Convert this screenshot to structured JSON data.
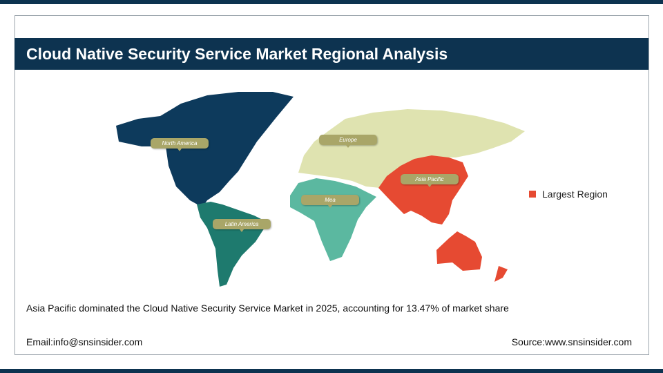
{
  "title": "Cloud Native Security Service Market Regional Analysis",
  "regions": [
    {
      "name": "North America",
      "color": "#0d3a5c"
    },
    {
      "name": "Europe",
      "color": "#dfe3b0"
    },
    {
      "name": "Asia Pacific",
      "color": "#e64a32"
    },
    {
      "name": "Mea",
      "color": "#5bb8a0"
    },
    {
      "name": "Latin America",
      "color": "#1e7a6e"
    }
  ],
  "legend": {
    "label": "Largest Region",
    "color": "#e64a32"
  },
  "summary": "Asia Pacific dominated the Cloud Native Security Service Market in 2025, accounting for 13.47% of market share",
  "footer": {
    "email": "Email:info@snsinsider.com",
    "source": "Source:www.snsinsider.com"
  }
}
